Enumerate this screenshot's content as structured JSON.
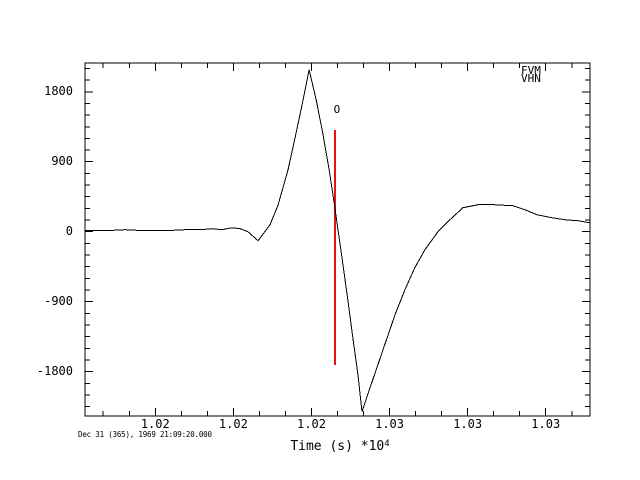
{
  "window": {
    "background": "#ffffff"
  },
  "colors": {
    "axis": "#000000",
    "trace": "#000000",
    "marker_line": "#e41414",
    "text": "#000000"
  },
  "legend": {
    "station": "FVM",
    "channel": "VHN"
  },
  "footer": {
    "timestamp": "Dec 31 (365), 1969 21:09:20.000"
  },
  "axes": {
    "x_title": "Time (s) *10",
    "x_title_exponent": "4"
  },
  "chart_data": {
    "type": "line",
    "title": "",
    "xlabel": "Time (s) *10^4",
    "ylabel": "",
    "grid": false,
    "legend_position": "top-right-inside",
    "xlim": [
      10133,
      10327
    ],
    "ylim": [
      -2370,
      2170
    ],
    "x_major_ticks": {
      "values": [
        10160,
        10190,
        10220,
        10250,
        10280,
        10310
      ],
      "labels": [
        "1.02",
        "1.02",
        "1.02",
        "1.03",
        "1.03",
        "1.03"
      ],
      "minor_step": 10
    },
    "y_major_ticks": {
      "values": [
        1800,
        900,
        0,
        -900,
        -1800
      ],
      "labels": [
        "1800",
        "900",
        "0",
        "-900",
        "-1800"
      ],
      "minor_step": 150
    },
    "series": [
      {
        "name": "FVM VHN",
        "color": "#000000",
        "x": [
          10133.0,
          10140.7,
          10148.4,
          10156.1,
          10163.7,
          10171.4,
          10177.2,
          10181.8,
          10185.6,
          10189.5,
          10192.6,
          10195.6,
          10199.5,
          10204.1,
          10207.2,
          10211.0,
          10213.7,
          10216.4,
          10219.1,
          10221.8,
          10224.1,
          10226.8,
          10229.1,
          10231.4,
          10233.7,
          10236.0,
          10237.9,
          10239.4,
          10242.5,
          10247.5,
          10252.1,
          10255.9,
          10259.7,
          10263.6,
          10268.6,
          10273.2,
          10278.2,
          10283.9,
          10290.5,
          10297.4,
          10302.0,
          10306.6,
          10312.4,
          10317.4,
          10322.4,
          10327.0
        ],
        "y": [
          13,
          13,
          26,
          13,
          13,
          26,
          26,
          39,
          26,
          51,
          39,
          0,
          -116,
          90,
          347,
          797,
          1209,
          1633,
          2083,
          1697,
          1311,
          797,
          283,
          -257,
          -810,
          -1389,
          -1851,
          -2314,
          -2006,
          -1517,
          -1067,
          -746,
          -463,
          -231,
          0,
          154,
          309,
          347,
          347,
          334,
          283,
          219,
          180,
          154,
          141,
          116
        ]
      }
    ],
    "event_marker": {
      "label": "O",
      "time": 10229,
      "amplitude_top": 1308,
      "amplitude_bottom": -1714,
      "label_amplitude": 1570,
      "color": "#e41414"
    }
  }
}
